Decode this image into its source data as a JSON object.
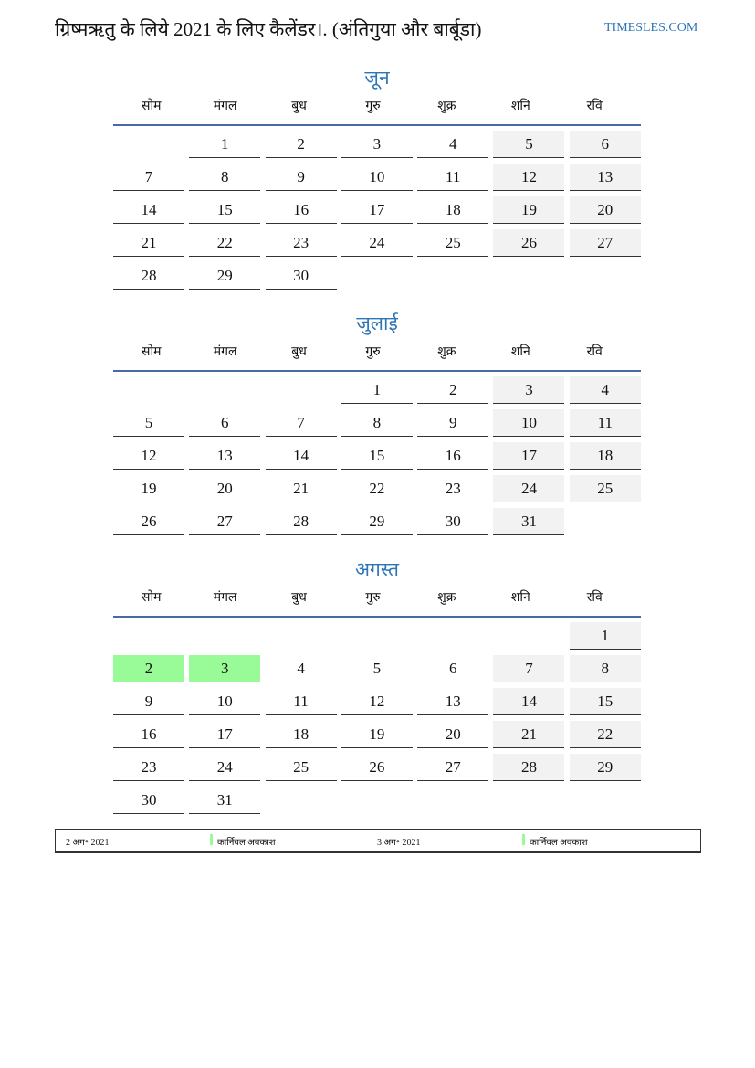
{
  "header": {
    "title": "ग्रिष्मऋतु के लिये 2021 के लिए कैलेंडर।. (अंतिगुया और बार्बूडा)",
    "site": "TIMESLES.COM"
  },
  "weekdays": [
    "सोम",
    "मंगल",
    "बुध",
    "गुरु",
    "शुक्र",
    "शनि",
    "रवि"
  ],
  "colors": {
    "accent": "#2e75b6",
    "weekend": "#f2f2f2",
    "holiday": "#98fb98",
    "header_line": "#4a69a4"
  },
  "months": [
    {
      "name": "जून",
      "weeks": [
        [
          null,
          1,
          2,
          3,
          4,
          5,
          6
        ],
        [
          7,
          8,
          9,
          10,
          11,
          12,
          13
        ],
        [
          14,
          15,
          16,
          17,
          18,
          19,
          20
        ],
        [
          21,
          22,
          23,
          24,
          25,
          26,
          27
        ],
        [
          28,
          29,
          30,
          null,
          null,
          null,
          null
        ]
      ],
      "holidays": []
    },
    {
      "name": "जुलाई",
      "weeks": [
        [
          null,
          null,
          null,
          1,
          2,
          3,
          4
        ],
        [
          5,
          6,
          7,
          8,
          9,
          10,
          11
        ],
        [
          12,
          13,
          14,
          15,
          16,
          17,
          18
        ],
        [
          19,
          20,
          21,
          22,
          23,
          24,
          25
        ],
        [
          26,
          27,
          28,
          29,
          30,
          31,
          null
        ]
      ],
      "holidays": []
    },
    {
      "name": "अगस्त",
      "weeks": [
        [
          null,
          null,
          null,
          null,
          null,
          null,
          1
        ],
        [
          2,
          3,
          4,
          5,
          6,
          7,
          8
        ],
        [
          9,
          10,
          11,
          12,
          13,
          14,
          15
        ],
        [
          16,
          17,
          18,
          19,
          20,
          21,
          22
        ],
        [
          23,
          24,
          25,
          26,
          27,
          28,
          29
        ],
        [
          30,
          31,
          null,
          null,
          null,
          null,
          null
        ]
      ],
      "holidays": [
        2,
        3
      ]
    }
  ],
  "legend": [
    {
      "date": "2 अग॰ 2021",
      "name": "कार्निवल अवकाश"
    },
    {
      "date": "3 अग॰ 2021",
      "name": "कार्निवल अवकाश"
    }
  ]
}
